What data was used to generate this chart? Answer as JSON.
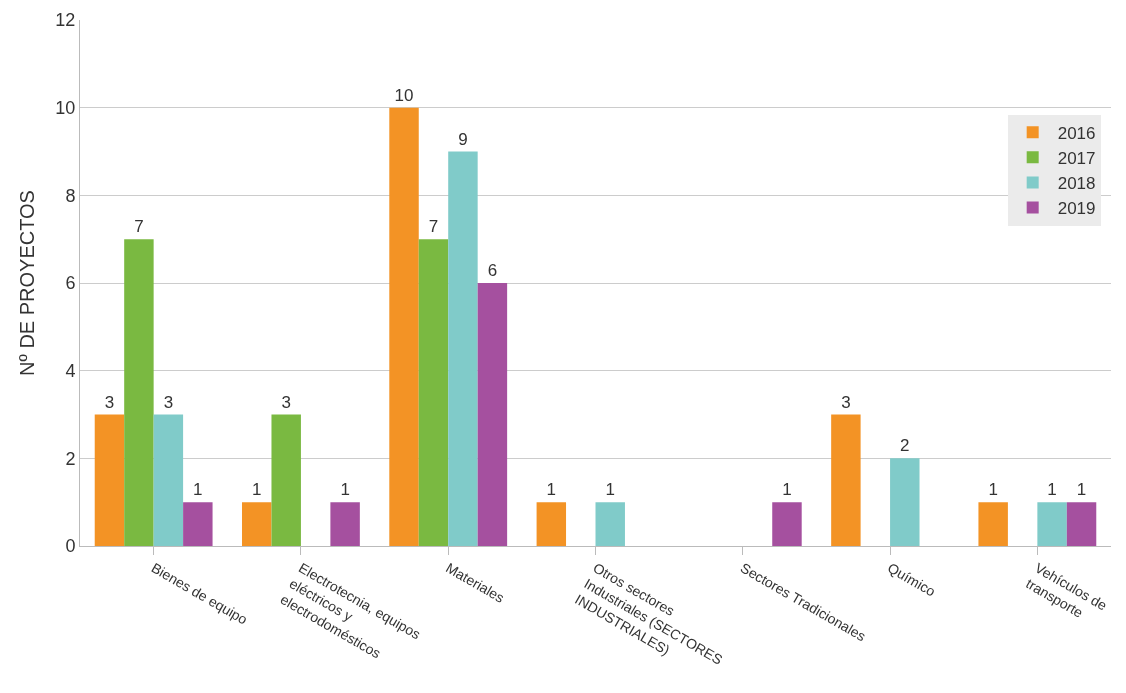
{
  "chart_data": {
    "type": "bar",
    "ylabel": "Nº DE PROYECTOS",
    "categories": [
      "Bienes de equipo",
      "Electrotecnia, equipos eléctricos y electrodomésticos",
      "Materiales",
      "Otros sectores Industriales (SECTORES INDUSTRIALES)",
      "Sectores Tradicionales",
      "Químico",
      "Vehículos de transporte"
    ],
    "series": [
      {
        "name": "2016",
        "color": "#f39325",
        "values": [
          3,
          1,
          10,
          1,
          null,
          3,
          1
        ]
      },
      {
        "name": "2017",
        "color": "#7ab941",
        "values": [
          7,
          3,
          7,
          null,
          null,
          null,
          null
        ]
      },
      {
        "name": "2018",
        "color": "#80cbc9",
        "values": [
          3,
          null,
          9,
          1,
          null,
          2,
          1
        ]
      },
      {
        "name": "2019",
        "color": "#a5509f",
        "values": [
          1,
          1,
          6,
          null,
          1,
          null,
          1
        ]
      }
    ],
    "ylim": [
      0,
      12
    ],
    "yticks": [
      0,
      2,
      4,
      6,
      8,
      10,
      12
    ],
    "grid": "y",
    "legend": "top right",
    "data_labels": true
  }
}
